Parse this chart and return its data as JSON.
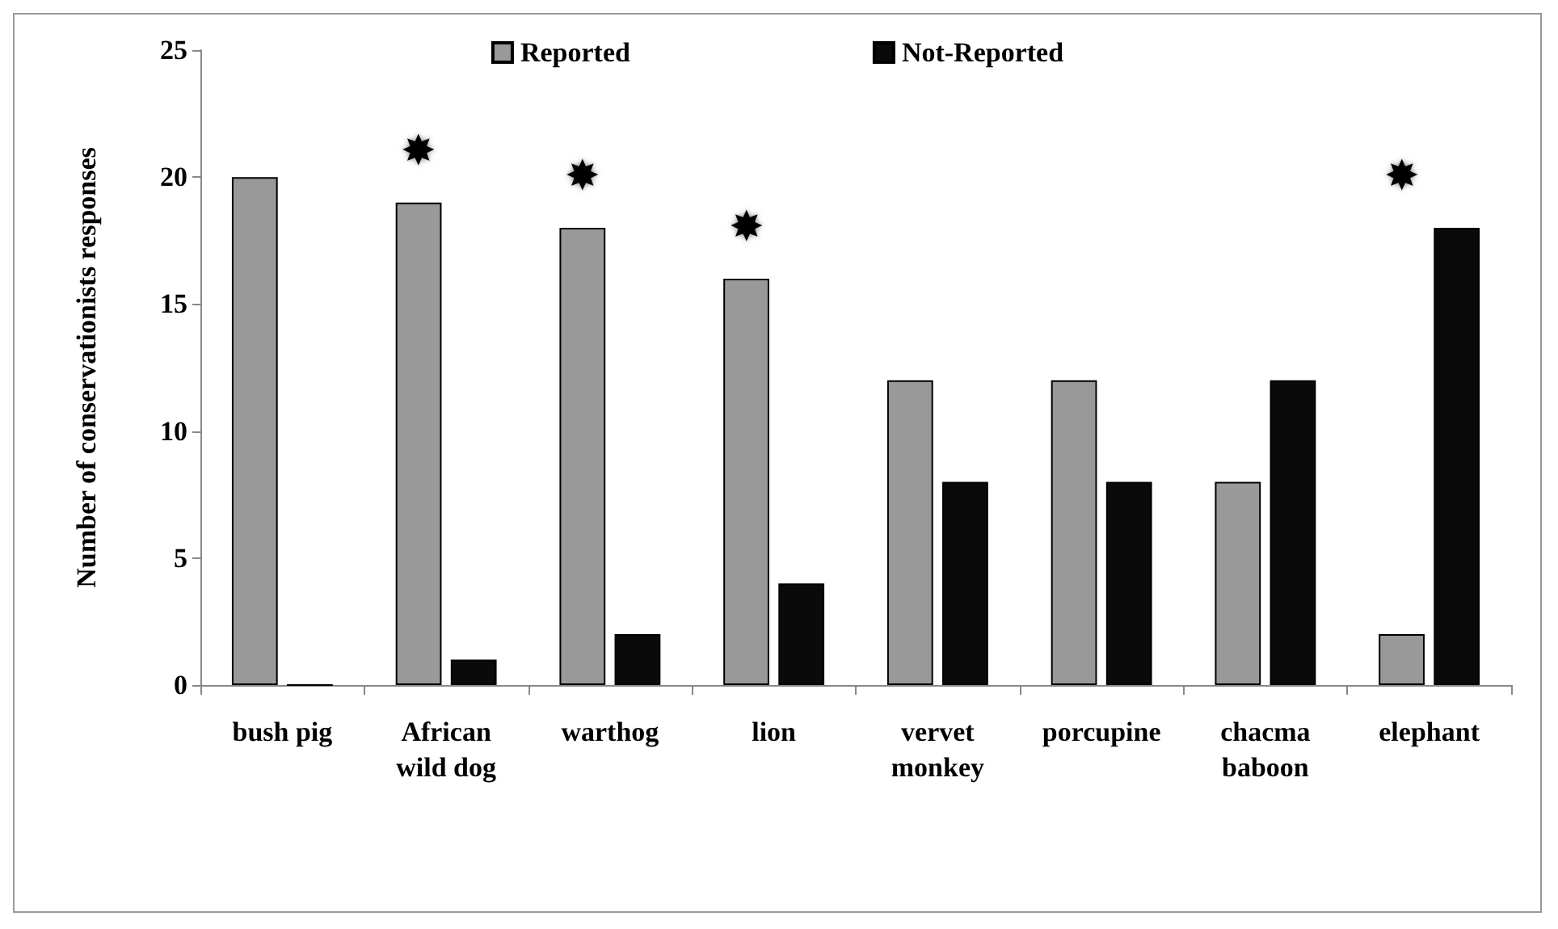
{
  "chart_data": {
    "type": "bar",
    "ylabel": "Number of conservationists responses",
    "categories": [
      "bush pig",
      "African wild dog",
      "warthog",
      "lion",
      "vervet monkey",
      "porcupine",
      "chacma baboon",
      "elephant"
    ],
    "series": [
      {
        "name": "Reported",
        "color": "#999999",
        "values": [
          20,
          19,
          18,
          16,
          12,
          12,
          8,
          2
        ]
      },
      {
        "name": "Not-Reported",
        "color": "#0a0a0a",
        "values": [
          0,
          1,
          2,
          4,
          8,
          8,
          12,
          18
        ]
      }
    ],
    "ylim": [
      0,
      25
    ],
    "yticks": [
      0,
      5,
      10,
      15,
      20,
      25
    ],
    "grid": false,
    "legend": "top",
    "annotations": [
      {
        "text": "✸",
        "x": "African wild dog",
        "y": 19
      },
      {
        "text": "✸",
        "x": "warthog",
        "y": 18
      },
      {
        "text": "✸",
        "x": "lion",
        "y": 16
      },
      {
        "text": "✸",
        "x": "elephant",
        "y": 18
      }
    ]
  }
}
